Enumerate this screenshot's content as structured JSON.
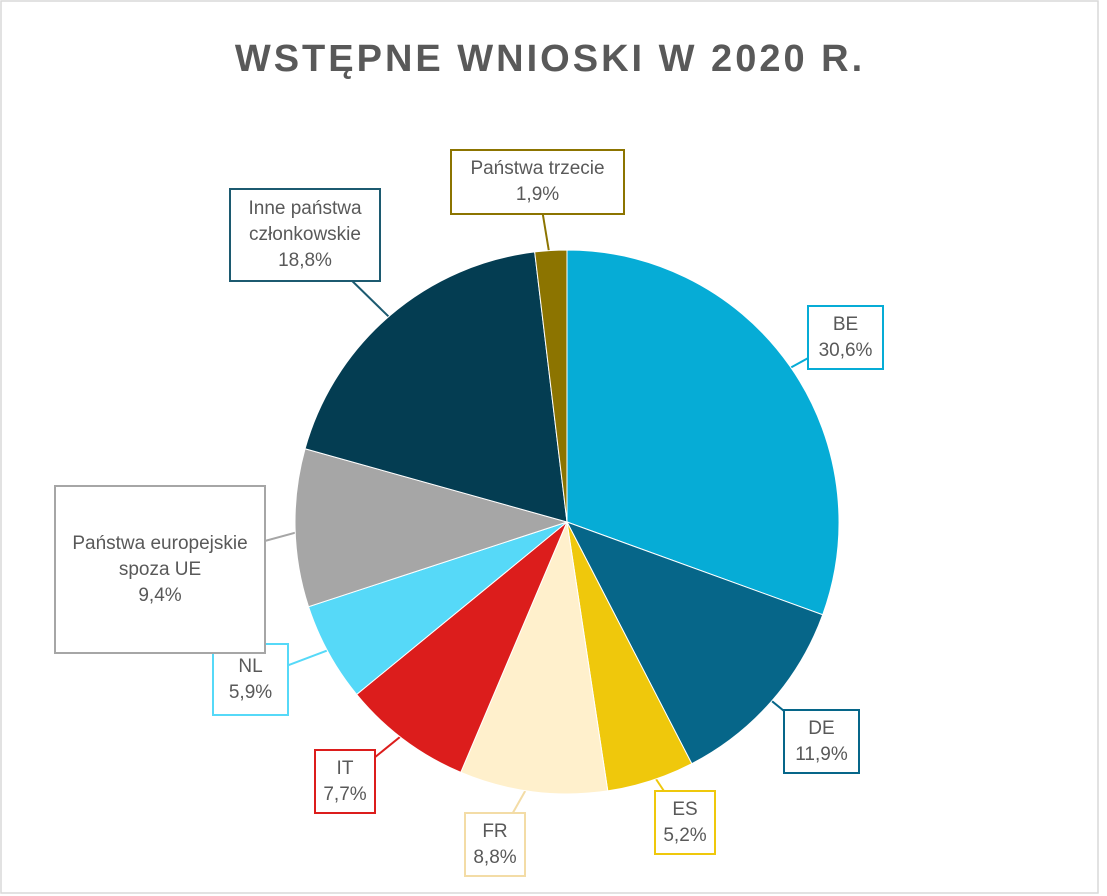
{
  "chart_data": {
    "type": "pie",
    "title": "WSTĘPNE WNIOSKI W 2020 R.",
    "categories": [
      "BE",
      "DE",
      "ES",
      "FR",
      "IT",
      "NL",
      "Państwa europejskie spoza UE",
      "Inne państwa członkowskie",
      "Państwa trzecie"
    ],
    "values": [
      30.6,
      11.9,
      5.2,
      8.8,
      7.7,
      5.9,
      9.4,
      18.8,
      1.9
    ],
    "value_labels": [
      "30,6%",
      "11,9%",
      "5,2%",
      "8,8%",
      "7,7%",
      "5,9%",
      "9,4%",
      "18,8%",
      "1,9%"
    ],
    "colors": [
      "#06acd6",
      "#066689",
      "#efc80c",
      "#fff0cc",
      "#dc1d1c",
      "#56d9f8",
      "#a6a6a6",
      "#043d52",
      "#8c7400"
    ]
  }
}
